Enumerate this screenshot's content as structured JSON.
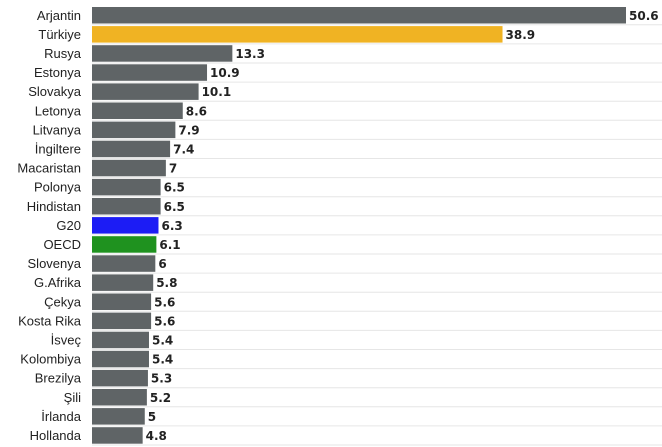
{
  "chart_data": {
    "type": "bar",
    "orientation": "horizontal",
    "categories": [
      "Arjantin",
      "Türkiye",
      "Rusya",
      "Estonya",
      "Slovakya",
      "Letonya",
      "Litvanya",
      "İngiltere",
      "Macaristan",
      "Polonya",
      "Hindistan",
      "G20",
      "OECD",
      "Slovenya",
      "G.Afrika",
      "Çekya",
      "Kosta Rika",
      "İsveç",
      "Kolombiya",
      "Brezilya",
      "Şili",
      "İrlanda",
      "Hollanda"
    ],
    "values": [
      50.6,
      38.9,
      13.3,
      10.9,
      10.1,
      8.6,
      7.9,
      7.4,
      7,
      6.5,
      6.5,
      6.3,
      6.1,
      6,
      5.8,
      5.6,
      5.6,
      5.4,
      5.4,
      5.3,
      5.2,
      5,
      4.8
    ],
    "value_labels": [
      "50.6",
      "38.9",
      "13.3",
      "10.9",
      "10.1",
      "8.6",
      "7.9",
      "7.4",
      "7",
      "6.5",
      "6.5",
      "6.3",
      "6.1",
      "6",
      "5.8",
      "5.6",
      "5.6",
      "5.4",
      "5.4",
      "5.3",
      "5.2",
      "5",
      "4.8"
    ],
    "colors": [
      "#5f6466",
      "#f0b323",
      "#5f6466",
      "#5f6466",
      "#5f6466",
      "#5f6466",
      "#5f6466",
      "#5f6466",
      "#5f6466",
      "#5f6466",
      "#5f6466",
      "#1c1cf5",
      "#1f921f",
      "#5f6466",
      "#5f6466",
      "#5f6466",
      "#5f6466",
      "#5f6466",
      "#5f6466",
      "#5f6466",
      "#5f6466",
      "#5f6466",
      "#5f6466"
    ],
    "default_color": "#5f6466",
    "highlight_colors": {
      "Türkiye": "#f0b323",
      "G20": "#1c1cf5",
      "OECD": "#1f921f"
    },
    "xlim": [
      0,
      50.6
    ],
    "title": "",
    "xlabel": "",
    "ylabel": "",
    "grid": true,
    "legend": "none"
  }
}
